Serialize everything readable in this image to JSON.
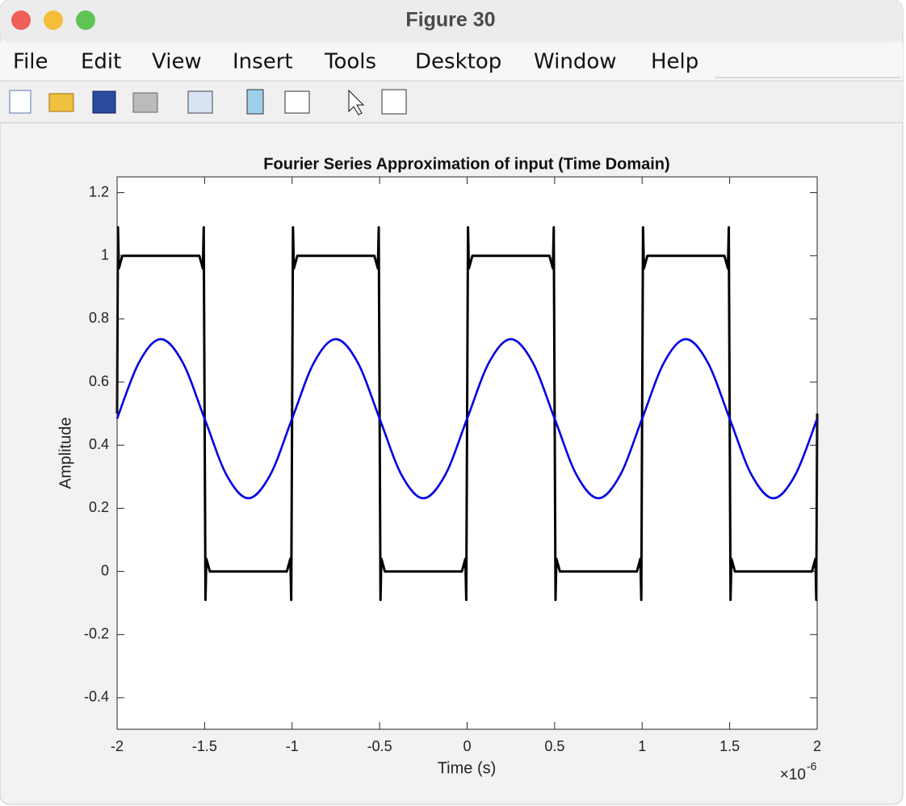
{
  "window": {
    "title": "Figure 30"
  },
  "menu": [
    "File",
    "Edit",
    "View",
    "Insert",
    "Tools",
    "Desktop",
    "Window",
    "Help"
  ],
  "chart_data": {
    "type": "line",
    "title": "Fourier Series Approximation of input (Time Domain)",
    "xlabel": "Time (s)",
    "ylabel": "Amplitude",
    "x_multiplier": {
      "base": "×10",
      "exponent": "-6"
    },
    "xlim": [
      -2,
      2
    ],
    "xticks": [
      -2,
      -1.5,
      -1,
      -0.5,
      0,
      0.5,
      1,
      1.5,
      2
    ],
    "ylim": [
      -0.5,
      1.25
    ],
    "yticks": [
      -0.4,
      -0.2,
      0,
      0.2,
      0.4,
      0.6,
      0.8,
      1,
      1.2
    ],
    "series": [
      {
        "color": "#000000",
        "x": [
          -2,
          -1.995,
          -1.99,
          -1.97,
          -1.53,
          -1.51,
          -1.505,
          -1.5,
          -1.495,
          -1.49,
          -1.47,
          -1.03,
          -1.01,
          -1.005,
          -1,
          -0.995,
          -0.99,
          -0.97,
          -0.53,
          -0.51,
          -0.505,
          -0.5,
          -0.495,
          -0.49,
          -0.47,
          -0.03,
          -0.01,
          -0.005,
          0,
          0.005,
          0.01,
          0.03,
          0.47,
          0.49,
          0.495,
          0.5,
          0.505,
          0.51,
          0.53,
          0.97,
          0.99,
          0.995,
          1,
          1.005,
          1.01,
          1.03,
          1.47,
          1.49,
          1.495,
          1.5,
          1.505,
          1.51,
          1.53,
          1.97,
          1.99,
          1.995,
          2
        ],
        "values": [
          0.5,
          1.09,
          0.96,
          1,
          1,
          0.96,
          1.09,
          0.5,
          -0.09,
          0.04,
          0,
          0,
          0.04,
          -0.09,
          0.5,
          1.09,
          0.96,
          1,
          1,
          0.96,
          1.09,
          0.5,
          -0.09,
          0.04,
          0,
          0,
          0.04,
          -0.09,
          0.5,
          1.09,
          0.96,
          1,
          1,
          0.96,
          1.09,
          0.5,
          -0.09,
          0.04,
          0,
          0,
          0.04,
          -0.09,
          0.5,
          1.09,
          0.96,
          1,
          1,
          0.96,
          1.09,
          0.5,
          -0.09,
          0.04,
          0,
          0,
          0.04,
          -0.09,
          0.5
        ]
      },
      {
        "color": "#0000e0",
        "x": [
          -2,
          -1.875,
          -1.75,
          -1.625,
          -1.5,
          -1.375,
          -1.25,
          -1.125,
          -1,
          -0.875,
          -0.75,
          -0.625,
          -0.5,
          -0.375,
          -0.25,
          -0.125,
          0,
          0.125,
          0.25,
          0.375,
          0.5,
          0.625,
          0.75,
          0.875,
          1,
          1.125,
          1.25,
          1.375,
          1.5,
          1.625,
          1.75,
          1.875,
          2
        ],
        "values": [
          0.484,
          0.662,
          0.736,
          0.662,
          0.484,
          0.306,
          0.232,
          0.306,
          0.484,
          0.662,
          0.736,
          0.662,
          0.484,
          0.306,
          0.232,
          0.306,
          0.484,
          0.662,
          0.736,
          0.662,
          0.484,
          0.306,
          0.232,
          0.306,
          0.484,
          0.662,
          0.736,
          0.662,
          0.484,
          0.306,
          0.232,
          0.306,
          0.484
        ]
      }
    ]
  }
}
